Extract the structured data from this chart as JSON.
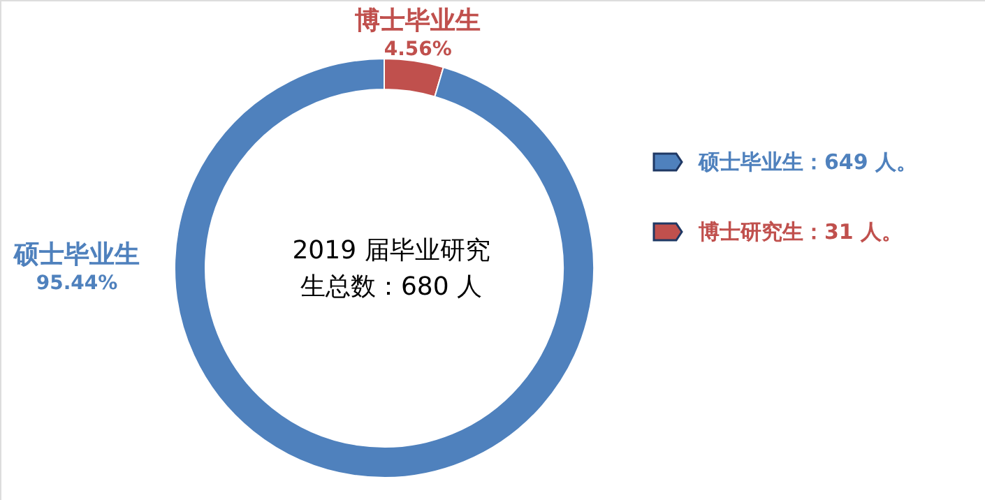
{
  "chart_data": {
    "type": "donut",
    "categories": [
      "博士毕业生",
      "硕士毕业生"
    ],
    "values": [
      4.56,
      95.44
    ],
    "colors": [
      "#c0504d",
      "#4f81bd"
    ],
    "value_labels": [
      "4.56%",
      "95.44%"
    ],
    "annotations": [
      "2019 届毕业研究生总数：680 人",
      "硕士毕业生：649 人。",
      "博士研究生：31 人。"
    ]
  }
}
